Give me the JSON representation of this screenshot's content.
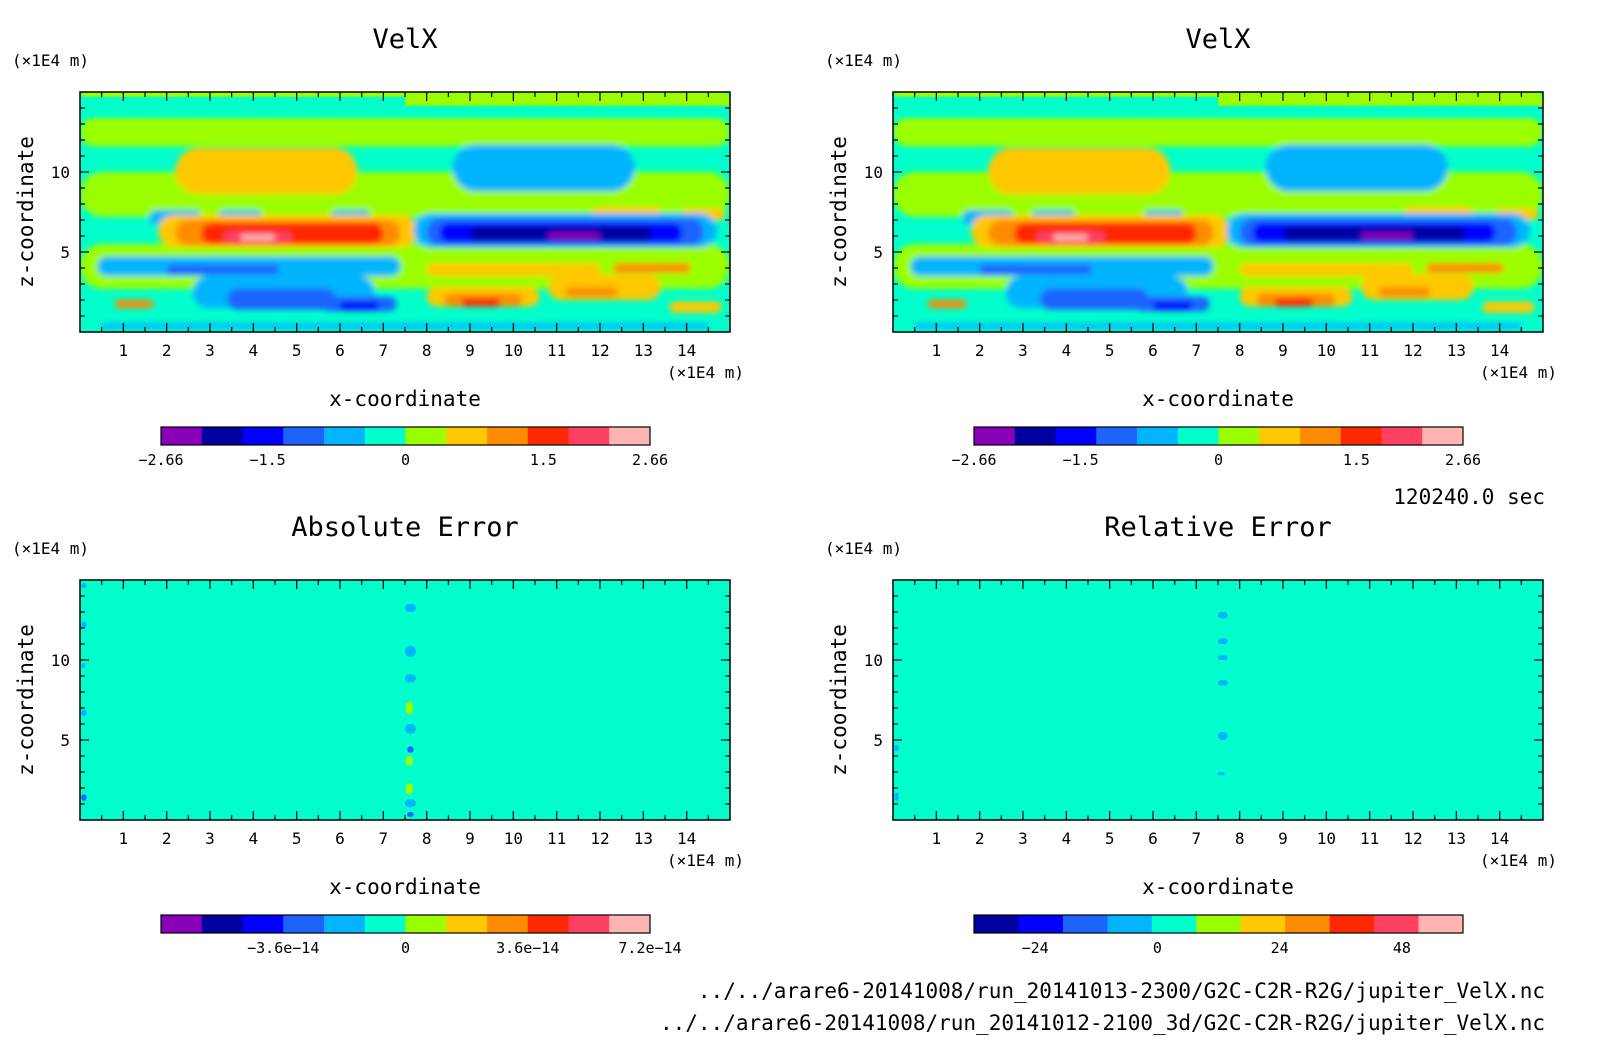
{
  "time_label": "120240.0 sec",
  "files": [
    "../../arare6-20141008/run_20141013-2300/G2C-C2R-R2G/jupiter_VelX.nc",
    "../../arare6-20141008/run_20141012-2100_3d/G2C-C2R-R2G/jupiter_VelX.nc"
  ],
  "colors": {
    "purple": "#8a00b8",
    "navy": "#0000a0",
    "blue": "#0000ff",
    "blue2": "#1e64ff",
    "sky": "#00b4ff",
    "aqua": "#00ffcc",
    "lime": "#9bff00",
    "yellow": "#ffc800",
    "orange": "#ff8c00",
    "red": "#ff2800",
    "rose": "#ff4060",
    "pink": "#ffb4b4"
  },
  "chart_data": [
    {
      "type": "heatmap",
      "title": "VelX",
      "xlabel": "x-coordinate",
      "ylabel": "z-coordinate",
      "x_unit": "(×1E4 m)",
      "y_unit": "(×1E4 m)",
      "xlim": [
        0,
        15
      ],
      "ylim": [
        0,
        15
      ],
      "x_ticks": [
        1,
        2,
        3,
        4,
        5,
        6,
        7,
        8,
        9,
        10,
        11,
        12,
        13,
        14
      ],
      "y_ticks": [
        5,
        10
      ],
      "field": "velx",
      "colorbar": {
        "range": [
          -2.66,
          2.66
        ],
        "colors": [
          "purple",
          "navy",
          "blue",
          "blue2",
          "sky",
          "aqua",
          "lime",
          "yellow",
          "orange",
          "red",
          "rose",
          "pink"
        ],
        "labels": [
          "−2.66",
          "−1.5",
          "0",
          "1.5",
          "2.66"
        ],
        "label_values": [
          -2.66,
          -1.5,
          0,
          1.5,
          2.66
        ]
      }
    },
    {
      "type": "heatmap",
      "title": "VelX",
      "xlabel": "x-coordinate",
      "ylabel": "z-coordinate",
      "x_unit": "(×1E4 m)",
      "y_unit": "(×1E4 m)",
      "xlim": [
        0,
        15
      ],
      "ylim": [
        0,
        15
      ],
      "x_ticks": [
        1,
        2,
        3,
        4,
        5,
        6,
        7,
        8,
        9,
        10,
        11,
        12,
        13,
        14
      ],
      "y_ticks": [
        5,
        10
      ],
      "field": "velx",
      "colorbar": {
        "range": [
          -2.66,
          2.66
        ],
        "colors": [
          "purple",
          "navy",
          "blue",
          "blue2",
          "sky",
          "aqua",
          "lime",
          "yellow",
          "orange",
          "red",
          "rose",
          "pink"
        ],
        "labels": [
          "−2.66",
          "−1.5",
          "0",
          "1.5",
          "2.66"
        ],
        "label_values": [
          -2.66,
          -1.5,
          0,
          1.5,
          2.66
        ]
      }
    },
    {
      "type": "heatmap",
      "title": "Absolute Error",
      "xlabel": "x-coordinate",
      "ylabel": "z-coordinate",
      "x_unit": "(×1E4 m)",
      "y_unit": "(×1E4 m)",
      "xlim": [
        0,
        15
      ],
      "ylim": [
        0,
        15
      ],
      "x_ticks": [
        1,
        2,
        3,
        4,
        5,
        6,
        7,
        8,
        9,
        10,
        11,
        12,
        13,
        14
      ],
      "y_ticks": [
        5,
        10
      ],
      "field": "abs_err",
      "colorbar": {
        "range": [
          -7.2e-14,
          7.2e-14
        ],
        "colors": [
          "purple",
          "navy",
          "blue",
          "blue2",
          "sky",
          "aqua",
          "lime",
          "yellow",
          "orange",
          "red",
          "rose",
          "pink"
        ],
        "labels": [
          "−3.6e−14",
          "0",
          "3.6e−14",
          "7.2e−14"
        ],
        "label_values": [
          -3.6e-14,
          0,
          3.6e-14,
          7.2e-14
        ]
      }
    },
    {
      "type": "heatmap",
      "title": "Relative Error",
      "xlabel": "x-coordinate",
      "ylabel": "z-coordinate",
      "x_unit": "(×1E4 m)",
      "y_unit": "(×1E4 m)",
      "xlim": [
        0,
        15
      ],
      "ylim": [
        0,
        15
      ],
      "x_ticks": [
        1,
        2,
        3,
        4,
        5,
        6,
        7,
        8,
        9,
        10,
        11,
        12,
        13,
        14
      ],
      "y_ticks": [
        5,
        10
      ],
      "field": "rel_err",
      "colorbar": {
        "range": [
          -36,
          60
        ],
        "colors": [
          "navy",
          "blue",
          "blue2",
          "sky",
          "aqua",
          "lime",
          "yellow",
          "orange",
          "red",
          "rose",
          "pink"
        ],
        "labels": [
          "−24",
          "0",
          "24",
          "48"
        ],
        "label_values": [
          -24,
          0,
          24,
          48
        ]
      }
    }
  ]
}
